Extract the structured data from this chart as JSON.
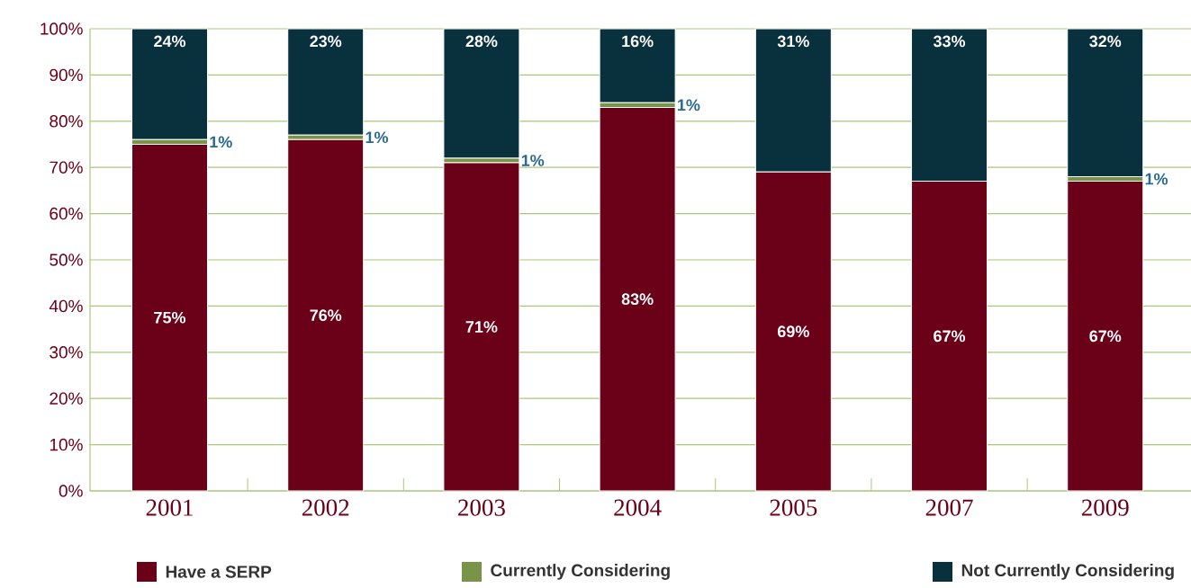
{
  "chart_data": {
    "type": "bar",
    "stacked": true,
    "categories": [
      "2001",
      "2002",
      "2003",
      "2004",
      "2005",
      "2007",
      "2009"
    ],
    "series": [
      {
        "name": "Have a SERP",
        "color": "#6b0019",
        "values": [
          75,
          76,
          71,
          83,
          69,
          67,
          67
        ],
        "value_labels": [
          "75%",
          "76%",
          "71%",
          "83%",
          "69%",
          "67%",
          "67%"
        ]
      },
      {
        "name": "Currently Considering",
        "color": "#7a9447",
        "values": [
          1,
          1,
          1,
          1,
          0,
          0,
          1
        ],
        "value_labels": [
          "1%",
          "1%",
          "1%",
          "1%",
          null,
          null,
          "1%"
        ]
      },
      {
        "name": "Not Currently Considering",
        "color": "#08303d",
        "values": [
          24,
          23,
          28,
          16,
          31,
          33,
          32
        ],
        "value_labels": [
          "24%",
          "23%",
          "28%",
          "16%",
          "31%",
          "33%",
          "32%"
        ]
      }
    ],
    "ylim": [
      0,
      100
    ],
    "yticks": [
      {
        "value": 0,
        "label": "0%"
      },
      {
        "value": 10,
        "label": "10%"
      },
      {
        "value": 20,
        "label": "20%"
      },
      {
        "value": 30,
        "label": "30%"
      },
      {
        "value": 40,
        "label": "40%"
      },
      {
        "value": 50,
        "label": "50%"
      },
      {
        "value": 60,
        "label": "60%"
      },
      {
        "value": 70,
        "label": "70%"
      },
      {
        "value": 80,
        "label": "80%"
      },
      {
        "value": 90,
        "label": "90%"
      },
      {
        "value": 100,
        "label": "100%"
      }
    ],
    "grid": "y",
    "legend": "bottom"
  }
}
